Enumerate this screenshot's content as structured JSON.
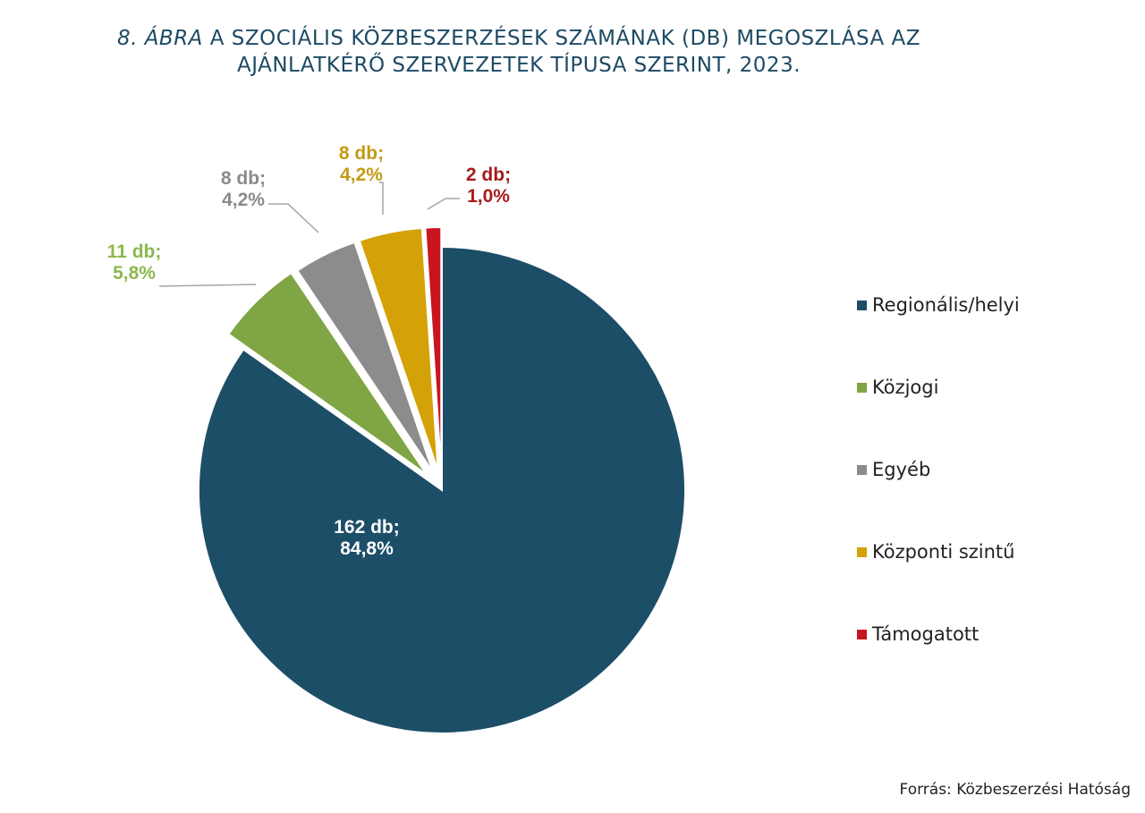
{
  "title": {
    "number": "8. ÁBRA",
    "line1": "A SZOCIÁLIS KÖZBESZERZÉSEK SZÁMÁNAK (DB) MEGOSZLÁSA AZ",
    "line2": "AJÁNLATKÉRŐ SZERVEZETEK TÍPUSA SZERINT, 2023."
  },
  "source": "Forrás: Közbeszerzési Hatóság",
  "chart_data": {
    "type": "pie",
    "title": "8. ÁBRA A SZOCIÁLIS KÖZBESZERZÉSEK SZÁMÁNAK (DB) MEGOSZLÁSA AZ AJÁNLATKÉRŐ SZERVEZETEK TÍPUSA SZERINT, 2023.",
    "unit": "db",
    "legend_position": "right",
    "slices": [
      {
        "name": "Regionális/helyi",
        "value": 162,
        "percent": 84.8,
        "label_line1": "162 db;",
        "label_line2": "84,8%",
        "color": "#1d4e68",
        "label_color": "#ffffff"
      },
      {
        "name": "Közjogi",
        "value": 11,
        "percent": 5.8,
        "label_line1": "11 db;",
        "label_line2": "5,8%",
        "color": "#7fa544",
        "label_color": "#8db84e"
      },
      {
        "name": "Egyéb",
        "value": 8,
        "percent": 4.2,
        "label_line1": "8 db;",
        "label_line2": "4,2%",
        "color": "#8c8c8c",
        "label_color": "#8a8a8a"
      },
      {
        "name": "Központi szintű",
        "value": 8,
        "percent": 4.2,
        "label_line1": "8 db;",
        "label_line2": "4,2%",
        "color": "#d4a106",
        "label_color": "#c39b16"
      },
      {
        "name": "Támogatott",
        "value": 2,
        "percent": 1.0,
        "label_line1": "2 db;",
        "label_line2": "1,0%",
        "color": "#c8151f",
        "label_color": "#a61c1c"
      }
    ]
  }
}
